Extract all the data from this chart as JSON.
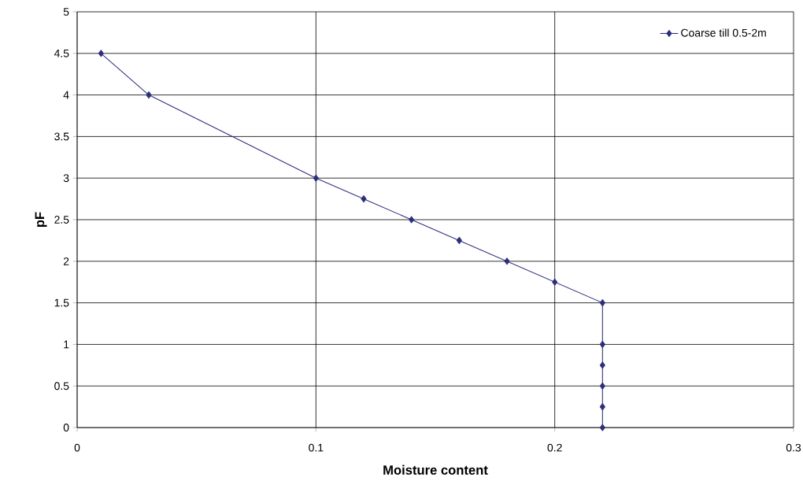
{
  "chart_data": {
    "type": "line",
    "xlabel": "Moisture content",
    "ylabel": "pF",
    "x": [
      0.01,
      0.03,
      0.1,
      0.12,
      0.14,
      0.16,
      0.18,
      0.2,
      0.22,
      0.22,
      0.22,
      0.22,
      0.22,
      0.22
    ],
    "series": [
      {
        "name": "Coarse till 0.5-2m",
        "color": "#2e2e7e",
        "values": [
          4.5,
          4,
          3,
          2.75,
          2.5,
          2.25,
          2,
          1.75,
          1.5,
          1,
          0.75,
          0.5,
          0.25,
          0
        ]
      }
    ],
    "xlim": [
      0,
      0.3
    ],
    "ylim": [
      0,
      5
    ],
    "xticks": [
      0,
      0.1,
      0.2,
      0.3
    ],
    "yticks": [
      0,
      0.5,
      1,
      1.5,
      2,
      2.5,
      3,
      3.5,
      4,
      4.5,
      5
    ],
    "grid": true,
    "legend": "top right",
    "marker": "diamond",
    "line_style": "solid"
  }
}
